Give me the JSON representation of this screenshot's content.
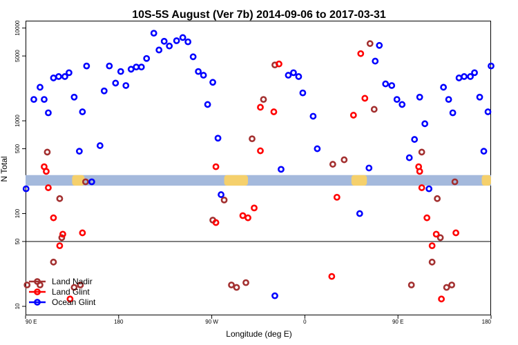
{
  "chart_data": {
    "type": "scatter",
    "title": "10S-5S August (Ver 7b)   2014-09-06 to 2017-03-31",
    "xlabel": "Longitude (deg E)",
    "ylabel": "N Total",
    "xscale": "linear",
    "yscale": "log",
    "xlim": [
      90,
      540
    ],
    "ylim": [
      8,
      12000
    ],
    "x_tick_values": [
      90,
      180,
      270,
      360,
      450,
      540
    ],
    "x_tick_labels": [
      "90 E",
      "180",
      "90 W",
      "0",
      "90 E",
      "180"
    ],
    "y_tick_values": [
      10,
      50,
      100,
      500,
      1000,
      5000,
      10000
    ],
    "y_tick_labels": [
      "10",
      "50",
      "100",
      "500",
      "1000",
      "5000",
      "10000"
    ],
    "reference_line_y": 50,
    "band": {
      "y_range": [
        200,
        260
      ],
      "color": "#a4b9dc",
      "land_color": "#f5d06c",
      "land_segments": [
        [
          135,
          147
        ],
        [
          282,
          305
        ],
        [
          405,
          420
        ],
        [
          531,
          540
        ]
      ]
    },
    "legend_position": "bottom-left",
    "series": [
      {
        "name": "Land Nadir",
        "color": "#a33030",
        "points": [
          [
            91.5,
            17
          ],
          [
            104,
            17
          ],
          [
            111,
            460
          ],
          [
            117,
            30
          ],
          [
            123,
            145
          ],
          [
            125,
            55
          ],
          [
            137,
            16
          ],
          [
            143,
            17
          ],
          [
            148,
            220
          ],
          [
            271,
            85
          ],
          [
            282,
            140
          ],
          [
            289,
            17
          ],
          [
            294,
            16
          ],
          [
            303,
            18
          ],
          [
            309,
            640
          ],
          [
            320,
            1700
          ],
          [
            331,
            4000
          ],
          [
            387,
            340
          ],
          [
            398,
            380
          ],
          [
            423,
            6800
          ],
          [
            427,
            1330
          ],
          [
            463,
            17
          ],
          [
            473,
            460
          ],
          [
            483,
            30
          ],
          [
            488,
            145
          ],
          [
            491,
            55
          ],
          [
            497,
            16
          ],
          [
            502,
            17
          ],
          [
            505,
            220
          ]
        ]
      },
      {
        "name": "Land Glint",
        "color": "#ff0000",
        "points": [
          [
            108,
            320
          ],
          [
            110,
            285
          ],
          [
            112,
            190
          ],
          [
            117,
            90
          ],
          [
            123,
            45
          ],
          [
            126,
            60
          ],
          [
            133,
            12
          ],
          [
            145,
            62
          ],
          [
            274,
            320
          ],
          [
            274,
            80
          ],
          [
            300,
            95
          ],
          [
            305,
            90
          ],
          [
            311,
            115
          ],
          [
            317,
            475
          ],
          [
            317,
            1400
          ],
          [
            330,
            1250
          ],
          [
            335,
            4100
          ],
          [
            386,
            21
          ],
          [
            391,
            150
          ],
          [
            407,
            1150
          ],
          [
            414,
            5300
          ],
          [
            418,
            1750
          ],
          [
            470,
            320
          ],
          [
            471,
            285
          ],
          [
            473,
            190
          ],
          [
            478,
            90
          ],
          [
            483,
            45
          ],
          [
            487,
            60
          ],
          [
            492,
            12
          ],
          [
            506,
            62
          ]
        ]
      },
      {
        "name": "Ocean Glint",
        "color": "#0000ff",
        "points": [
          [
            90.5,
            185
          ],
          [
            98,
            1700
          ],
          [
            104,
            2300
          ],
          [
            108,
            1700
          ],
          [
            112,
            1220
          ],
          [
            117,
            2900
          ],
          [
            122,
            3000
          ],
          [
            128,
            3000
          ],
          [
            132,
            3300
          ],
          [
            137,
            1800
          ],
          [
            142,
            470
          ],
          [
            145,
            1250
          ],
          [
            149,
            3900
          ],
          [
            154,
            220
          ],
          [
            162,
            540
          ],
          [
            166,
            2100
          ],
          [
            171,
            3900
          ],
          [
            177,
            2550
          ],
          [
            182,
            3400
          ],
          [
            187,
            2400
          ],
          [
            192,
            3600
          ],
          [
            197,
            3800
          ],
          [
            202,
            3800
          ],
          [
            207,
            4700
          ],
          [
            214,
            8800
          ],
          [
            219,
            5800
          ],
          [
            224,
            7200
          ],
          [
            229,
            6400
          ],
          [
            236,
            7300
          ],
          [
            242,
            7900
          ],
          [
            247,
            7100
          ],
          [
            252,
            4900
          ],
          [
            257,
            3400
          ],
          [
            262,
            3100
          ],
          [
            266,
            1500
          ],
          [
            271,
            2600
          ],
          [
            276,
            650
          ],
          [
            279,
            160
          ],
          [
            331,
            13
          ],
          [
            337,
            300
          ],
          [
            344,
            3100
          ],
          [
            349,
            3300
          ],
          [
            354,
            3000
          ],
          [
            358,
            2000
          ],
          [
            368,
            1120
          ],
          [
            372,
            500
          ],
          [
            413,
            100
          ],
          [
            422,
            310
          ],
          [
            428,
            4400
          ],
          [
            432,
            6500
          ],
          [
            438,
            2500
          ],
          [
            444,
            2400
          ],
          [
            449,
            1700
          ],
          [
            454,
            1500
          ],
          [
            461,
            400
          ],
          [
            466,
            630
          ],
          [
            471,
            1800
          ],
          [
            476,
            930
          ],
          [
            480,
            185
          ],
          [
            494,
            2300
          ],
          [
            499,
            1700
          ],
          [
            503,
            1220
          ],
          [
            509,
            2900
          ],
          [
            514,
            3000
          ],
          [
            520,
            3000
          ],
          [
            524,
            3300
          ],
          [
            529,
            1800
          ],
          [
            533,
            470
          ],
          [
            537,
            1250
          ],
          [
            540,
            3900
          ]
        ]
      }
    ]
  }
}
